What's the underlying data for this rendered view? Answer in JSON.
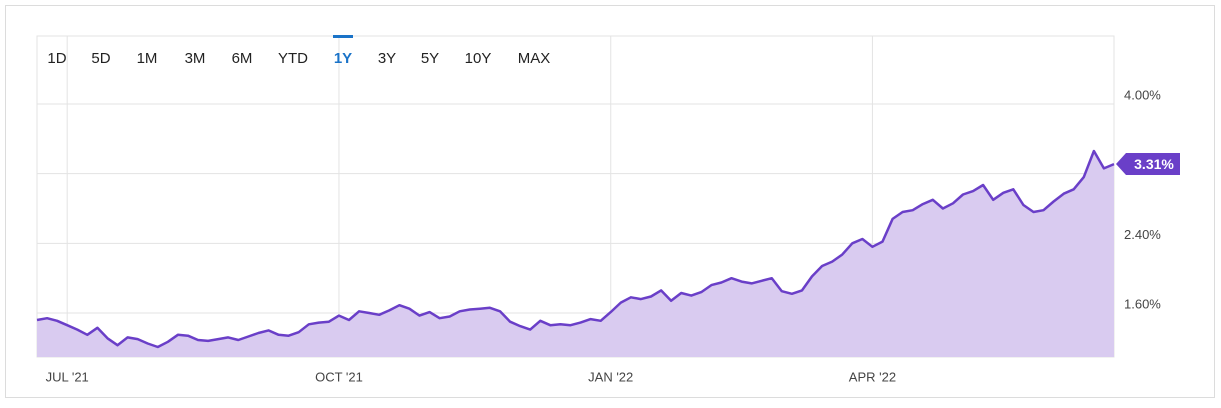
{
  "chart_data": {
    "type": "area",
    "range_buttons": [
      "1D",
      "5D",
      "1M",
      "3M",
      "6M",
      "YTD",
      "1Y",
      "3Y",
      "5Y",
      "10Y",
      "MAX"
    ],
    "active_range": "1Y",
    "categories": [
      null,
      null,
      null,
      "JUL '21",
      null,
      null,
      null,
      null,
      null,
      null,
      null,
      null,
      null,
      null,
      null,
      null,
      null,
      null,
      null,
      null,
      null,
      null,
      null,
      null,
      null,
      null,
      null,
      null,
      null,
      null,
      "OCT '21",
      null,
      null,
      null,
      null,
      null,
      null,
      null,
      null,
      null,
      null,
      null,
      null,
      null,
      null,
      null,
      null,
      null,
      null,
      null,
      null,
      null,
      null,
      null,
      null,
      null,
      null,
      "JAN '22",
      null,
      null,
      null,
      null,
      null,
      null,
      null,
      null,
      null,
      null,
      null,
      null,
      null,
      null,
      null,
      null,
      null,
      null,
      null,
      null,
      null,
      null,
      null,
      null,
      null,
      "APR '22",
      null,
      null,
      null,
      null,
      null,
      null,
      null,
      null,
      null,
      null,
      null,
      null,
      null,
      null,
      null,
      null,
      null,
      null,
      null,
      null,
      null,
      null,
      null,
      null
    ],
    "values": [
      1.52,
      1.54,
      1.51,
      1.46,
      1.41,
      1.35,
      1.43,
      1.31,
      1.23,
      1.32,
      1.3,
      1.25,
      1.21,
      1.27,
      1.35,
      1.34,
      1.29,
      1.28,
      1.3,
      1.32,
      1.29,
      1.33,
      1.37,
      1.4,
      1.35,
      1.34,
      1.38,
      1.47,
      1.49,
      1.5,
      1.57,
      1.52,
      1.62,
      1.6,
      1.58,
      1.63,
      1.69,
      1.65,
      1.57,
      1.61,
      1.54,
      1.56,
      1.62,
      1.64,
      1.65,
      1.66,
      1.62,
      1.5,
      1.45,
      1.41,
      1.51,
      1.46,
      1.47,
      1.46,
      1.49,
      1.53,
      1.51,
      1.61,
      1.72,
      1.78,
      1.76,
      1.79,
      1.86,
      1.74,
      1.83,
      1.8,
      1.84,
      1.92,
      1.95,
      2.0,
      1.96,
      1.94,
      1.97,
      2.0,
      1.85,
      1.82,
      1.86,
      2.02,
      2.14,
      2.19,
      2.27,
      2.4,
      2.45,
      2.36,
      2.42,
      2.68,
      2.76,
      2.78,
      2.85,
      2.9,
      2.8,
      2.86,
      2.96,
      3.0,
      3.07,
      2.9,
      2.98,
      3.02,
      2.84,
      2.76,
      2.78,
      2.88,
      2.97,
      3.02,
      3.16,
      3.46,
      3.26,
      3.31
    ],
    "value_labels": [
      null,
      null,
      null,
      null,
      null,
      null,
      null,
      null,
      null,
      null,
      null,
      null,
      null,
      null,
      null,
      null,
      null,
      null,
      null,
      null,
      null,
      null,
      null,
      null,
      null,
      null,
      null,
      null,
      null,
      null,
      null,
      null,
      null,
      null,
      null,
      null,
      null,
      null,
      null,
      null,
      null,
      null,
      null,
      null,
      null,
      null,
      null,
      null,
      null,
      null,
      null,
      null,
      null,
      null,
      null,
      null,
      null,
      null,
      null,
      null,
      null,
      null,
      null,
      null,
      null,
      null,
      null,
      null,
      null,
      null,
      null,
      null,
      null,
      null,
      null,
      null,
      null,
      null,
      null,
      null,
      null,
      null,
      null,
      null,
      null,
      null,
      null,
      null,
      null,
      null,
      null,
      null,
      null,
      null,
      null,
      null,
      null,
      null,
      null,
      null,
      null,
      null,
      null,
      null,
      null,
      null,
      null,
      "3.31%"
    ],
    "color": "#6a3fc8",
    "fill_color": "#d9cbf0",
    "ylim": [
      1.095,
      4.78
    ],
    "yticks": [
      {
        "value": 1.6,
        "label": "1.60%"
      },
      {
        "value": 2.4,
        "label": "2.40%"
      },
      {
        "value": 3.2,
        "label": null
      },
      {
        "value": 4.0,
        "label": "4.00%"
      }
    ],
    "grid": true
  }
}
